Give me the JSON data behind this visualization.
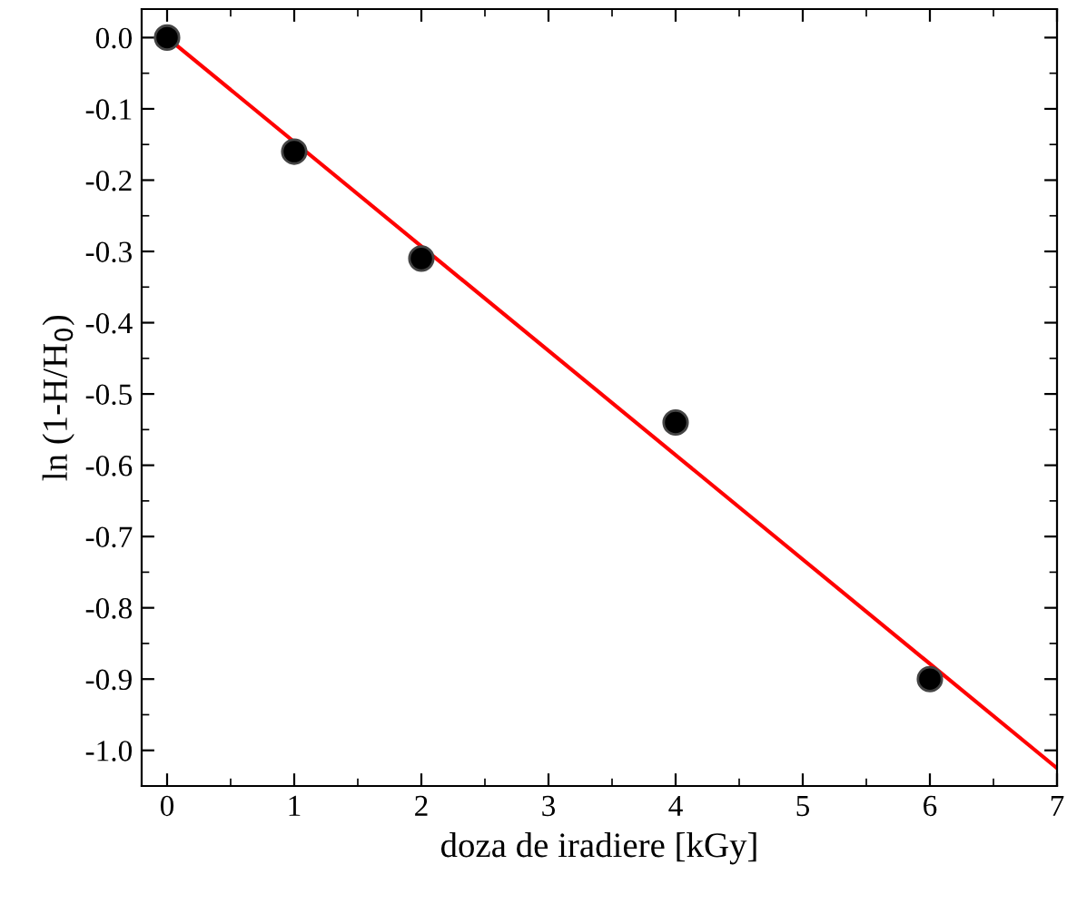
{
  "chart_data": {
    "type": "scatter",
    "xlabel": "doza de iradiere [kGy]",
    "ylabel": "ln (1-H/H$_{0}$)",
    "x": [
      0,
      1,
      2,
      4,
      6
    ],
    "series": [
      {
        "color": "#000000",
        "marker": "circle",
        "values": [
          0,
          -0.16,
          -0.31,
          -0.54,
          -0.9
        ]
      },
      {
        "type": "line",
        "color": "#ff0000",
        "x": [
          0,
          7
        ],
        "values": [
          0,
          -1.025
        ],
        "marker": "none",
        "line_style": "solid"
      }
    ],
    "xlim": [
      -0.2,
      7
    ],
    "xticks": [
      0,
      1,
      2,
      3,
      4,
      5,
      6,
      7
    ],
    "ylim": [
      -1.05,
      0.04
    ],
    "yticks": [
      {
        "value": 0,
        "label": "0.0"
      },
      -0.1,
      -0.2,
      -0.3,
      -0.4,
      -0.5,
      -0.6,
      -0.7,
      -0.8,
      -0.9,
      {
        "value": -1,
        "label": "-1.0"
      }
    ],
    "grid": false,
    "legend": false
  }
}
